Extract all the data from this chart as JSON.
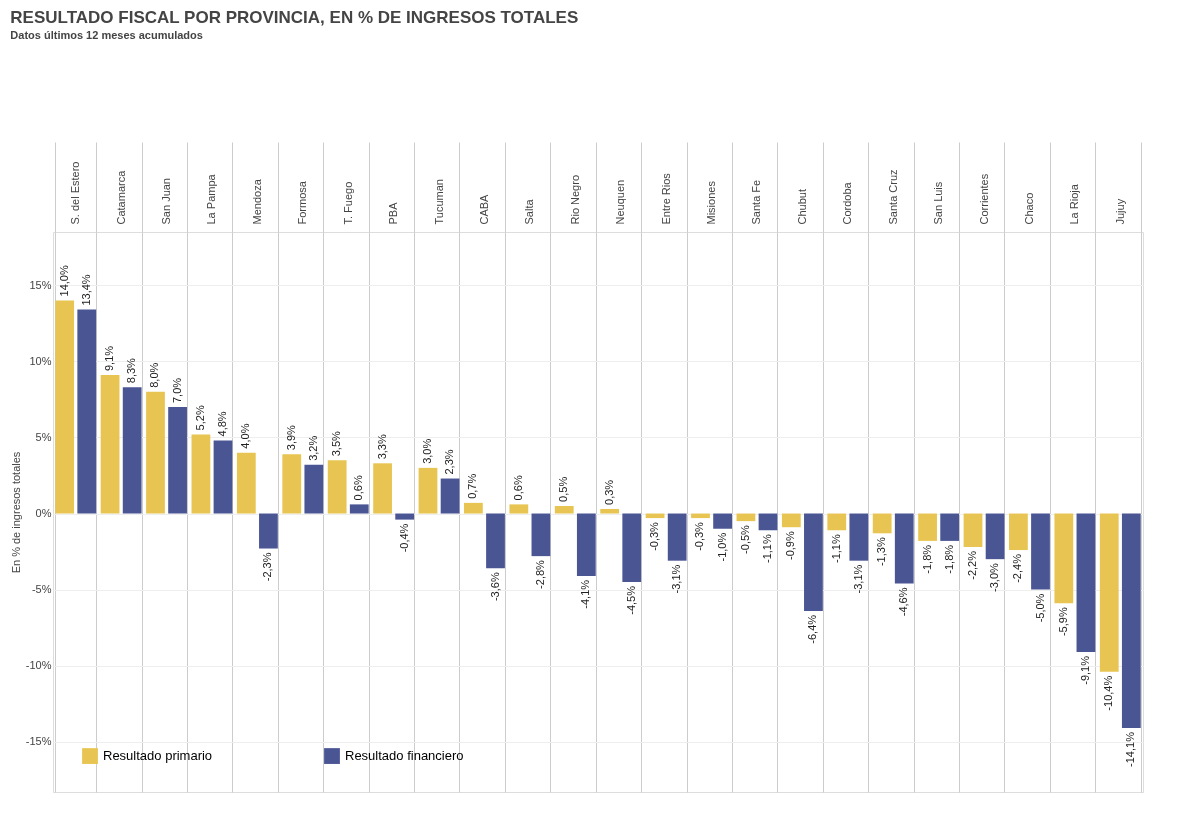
{
  "chart_data": {
    "type": "bar",
    "title": "RESULTADO FISCAL POR PROVINCIA, EN % DE INGRESOS TOTALES",
    "subtitle": "Datos últimos 12 meses acumulados",
    "ylabel": "En % de ingresos totales",
    "categories": [
      "S. del Estero",
      "Catamarca",
      "San Juan",
      "La Pampa",
      "Mendoza",
      "Formosa",
      "T. Fuego",
      "PBA",
      "Tucuman",
      "CABA",
      "Salta",
      "Rio Negro",
      "Neuquen",
      "Entre Rios",
      "Misiones",
      "Santa Fe",
      "Chubut",
      "Cordoba",
      "Santa Cruz",
      "San Luis",
      "Corrientes",
      "Chaco",
      "La Rioja",
      "Jujuy"
    ],
    "series": [
      {
        "name": "Resultado primario",
        "color": "#e8c552",
        "values": [
          14.0,
          9.1,
          8.0,
          5.2,
          4.0,
          3.9,
          3.5,
          3.3,
          3.0,
          0.7,
          0.6,
          0.5,
          0.3,
          -0.3,
          -0.3,
          -0.5,
          -0.9,
          -1.1,
          -1.3,
          -1.8,
          -2.2,
          -2.4,
          -5.9,
          -10.4
        ],
        "value_labels": [
          "14,0%",
          "9,1%",
          "8,0%",
          "5,2%",
          "4,0%",
          "3,9%",
          "3,5%",
          "3,3%",
          "3,0%",
          "0,7%",
          "0,6%",
          "0,5%",
          "0,3%",
          "-0,3%",
          "-0,3%",
          "-0,5%",
          "-0,9%",
          "-1,1%",
          "-1,3%",
          "-1,8%",
          "-2,2%",
          "-2,4%",
          "-5,9%",
          "-10,4%"
        ]
      },
      {
        "name": "Resultado financiero",
        "color": "#4a5594",
        "values": [
          13.4,
          8.3,
          7.0,
          4.8,
          -2.3,
          3.2,
          0.6,
          -0.4,
          2.3,
          -3.6,
          -2.8,
          -4.1,
          -4.5,
          -3.1,
          -1.0,
          -1.1,
          -6.4,
          -3.1,
          -4.6,
          -1.8,
          -3.0,
          -5.0,
          -9.1,
          -14.1
        ],
        "value_labels": [
          "13,4%",
          "8,3%",
          "7,0%",
          "4,8%",
          "-2,3%",
          "3,2%",
          "0,6%",
          "-0,4%",
          "2,3%",
          "-3,6%",
          "-2,8%",
          "-4,1%",
          "-4,5%",
          "-3,1%",
          "-1,0%",
          "-1,1%",
          "-6,4%",
          "-3,1%",
          "-4,6%",
          "-1,8%",
          "-3,0%",
          "-5,0%",
          "-9,1%",
          "-14,1%"
        ]
      }
    ],
    "ylim": [
      -18.3,
      18.5
    ],
    "yticks": [
      {
        "value": -15,
        "label": "-15%"
      },
      {
        "value": -10,
        "label": "-10%"
      },
      {
        "value": -5,
        "label": "-5%"
      },
      {
        "value": 0,
        "label": "0%"
      },
      {
        "value": 5,
        "label": "5%"
      },
      {
        "value": 10,
        "label": "10%"
      },
      {
        "value": 15,
        "label": "15%"
      }
    ],
    "grid": true,
    "legend": "bottom left"
  }
}
